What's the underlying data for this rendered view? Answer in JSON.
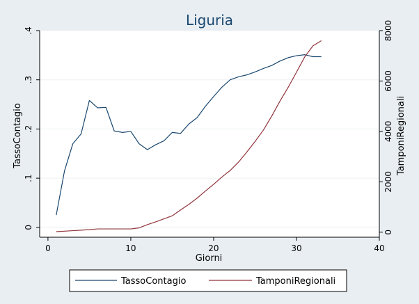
{
  "chart_data": {
    "type": "line",
    "title": "Liguria",
    "xlabel": "Giorni",
    "ylabel_left": "TassoContagio",
    "ylabel_right": "TamponiRegionali",
    "xlim": [
      -1,
      40
    ],
    "ylim_left": [
      -0.02,
      0.4
    ],
    "ylim_right": [
      -200,
      8000
    ],
    "x_ticks": [
      "0",
      "10",
      "20",
      "30",
      "40"
    ],
    "y_ticks_left": [
      ".4",
      ".3",
      ".2",
      ".1",
      "0"
    ],
    "y_ticks_right": [
      "8000",
      "6000",
      "4000",
      "2000",
      "0"
    ],
    "grid": true,
    "legend_position": "bottom",
    "colors": {
      "background": "#e8eef2",
      "plot_bg": "#ffffff",
      "series1": "#1a476f",
      "series2": "#90353b"
    },
    "series": [
      {
        "name": "TassoContagio",
        "axis": "left",
        "x": [
          1,
          2,
          3,
          4,
          5,
          6,
          7,
          8,
          9,
          10,
          11,
          12,
          13,
          14,
          15,
          16,
          17,
          18,
          19,
          20,
          21,
          22,
          23,
          24,
          25,
          26,
          27,
          28,
          29,
          30,
          31,
          32,
          33
        ],
        "values": [
          0.025,
          0.115,
          0.17,
          0.19,
          0.258,
          0.243,
          0.244,
          0.196,
          0.193,
          0.195,
          0.17,
          0.158,
          0.168,
          0.176,
          0.193,
          0.191,
          0.21,
          0.223,
          0.246,
          0.266,
          0.285,
          0.3,
          0.306,
          0.31,
          0.316,
          0.323,
          0.329,
          0.338,
          0.345,
          0.349,
          0.351,
          0.347,
          0.347
        ]
      },
      {
        "name": "TamponiRegionali",
        "axis": "right",
        "x": [
          1,
          2,
          3,
          4,
          5,
          6,
          7,
          8,
          9,
          10,
          11,
          12,
          13,
          14,
          15,
          16,
          17,
          18,
          19,
          20,
          21,
          22,
          23,
          24,
          25,
          26,
          27,
          28,
          29,
          30,
          31,
          32,
          33
        ],
        "values": [
          20,
          40,
          60,
          80,
          100,
          130,
          130,
          130,
          130,
          130,
          170,
          300,
          410,
          530,
          650,
          880,
          1100,
          1350,
          1630,
          1900,
          2190,
          2450,
          2780,
          3180,
          3600,
          4050,
          4600,
          5200,
          5750,
          6350,
          6960,
          7400,
          7600
        ]
      }
    ]
  }
}
